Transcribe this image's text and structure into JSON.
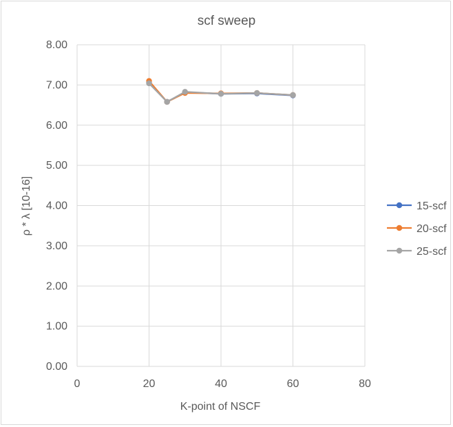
{
  "chart_data": {
    "type": "scatter",
    "title": "scf sweep",
    "xlabel": "K-point of NSCF",
    "ylabel": "ρ * λ [10-16]",
    "xlim": [
      0,
      80
    ],
    "ylim": [
      0,
      8
    ],
    "xticks": [
      0,
      20,
      40,
      60,
      80
    ],
    "yticks": [
      0,
      1,
      2,
      3,
      4,
      5,
      6,
      7,
      8
    ],
    "xtick_labels": [
      "0",
      "20",
      "40",
      "60",
      "80"
    ],
    "ytick_labels": [
      "0.00",
      "1.00",
      "2.00",
      "3.00",
      "4.00",
      "5.00",
      "6.00",
      "7.00",
      "8.00"
    ],
    "grid": true,
    "legend_position": "right",
    "series": [
      {
        "name": "15-scf",
        "color": "#4472c4",
        "x": [
          20,
          25,
          30,
          40,
          50,
          60
        ],
        "y": [
          7.06,
          6.58,
          6.82,
          6.78,
          6.79,
          6.74
        ]
      },
      {
        "name": "20-scf",
        "color": "#ed7d31",
        "x": [
          20,
          25,
          30,
          40,
          50,
          60
        ],
        "y": [
          7.1,
          6.58,
          6.8,
          6.79,
          6.8,
          6.75
        ]
      },
      {
        "name": "25-scf",
        "color": "#a5a5a5",
        "x": [
          20,
          25,
          30,
          40,
          50,
          60
        ],
        "y": [
          7.04,
          6.58,
          6.83,
          6.78,
          6.8,
          6.75
        ]
      }
    ]
  }
}
